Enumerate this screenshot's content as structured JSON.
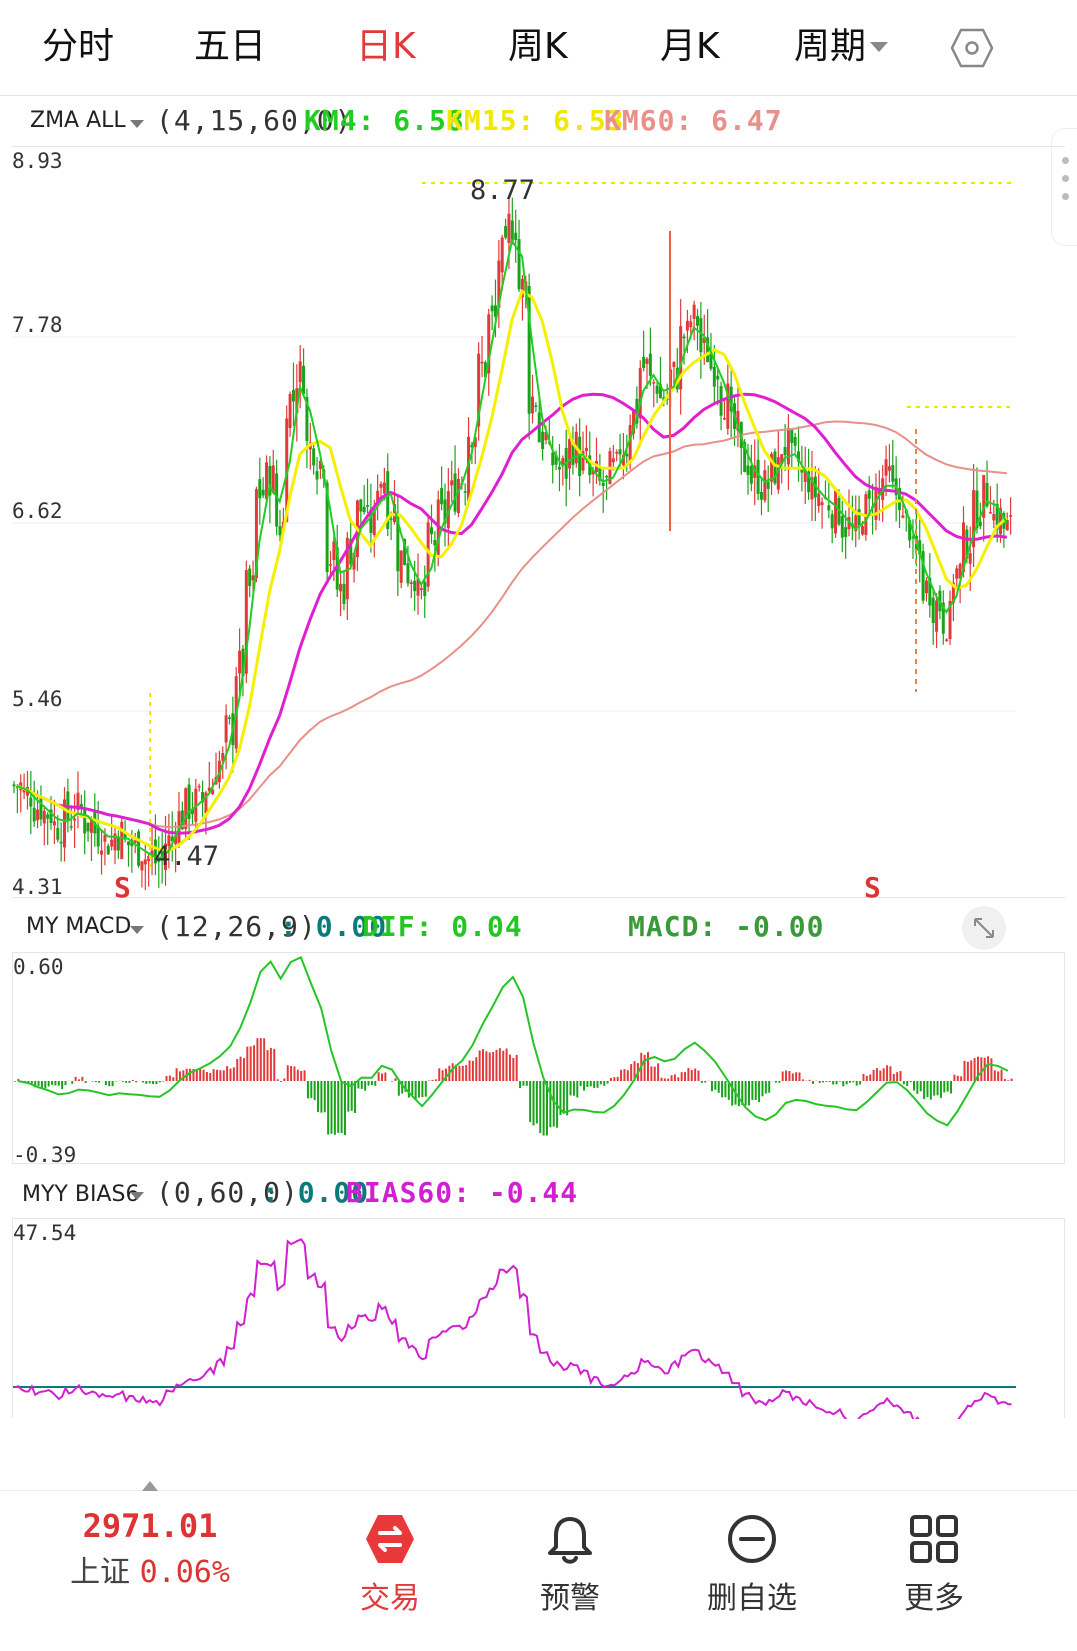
{
  "tabs": [
    {
      "label": "分时"
    },
    {
      "label": "五日"
    },
    {
      "label": "日K"
    },
    {
      "label": "周K"
    },
    {
      "label": "月K"
    },
    {
      "label": "周期"
    }
  ],
  "main_chart": {
    "indicator_name": "ZMA ALL",
    "params": "(4,15,60,0)",
    "km4": "KM4: 6.58",
    "km15": "KM15: 6.53",
    "km60": "KM60: 6.47",
    "y_labels": [
      "8.93",
      "7.78",
      "6.62",
      "5.46",
      "4.31"
    ],
    "high_label": "8.77",
    "low_label": "4.47",
    "signal_left": "S",
    "signal_right": "S"
  },
  "macd": {
    "indicator_name": "MY MACD",
    "params": "(12,26,9)",
    "value": ": 0.00",
    "dif": "DIF: 0.04",
    "macd": "MACD: -0.00",
    "y_top": "0.60",
    "y_bottom": "-0.39"
  },
  "bias": {
    "indicator_name": "MYY BIAS6",
    "params": "(0,60,0)",
    "value": ": 0.00",
    "bias60": "BIAS60: -0.44",
    "y_top": "47.54"
  },
  "bottom_nav": {
    "index_value": "2971.01",
    "index_name": "上证",
    "index_change": "0.06%",
    "trade": "交易",
    "alert": "预警",
    "remove": "删自选",
    "more": "更多"
  },
  "colors": {
    "up": "#e23a3a",
    "down": "#1aa31a",
    "km4": "#22cc22",
    "km15": "#f5f000",
    "km60": "#e8908a",
    "pink_ma": "#e020d0",
    "dif": "#26c526",
    "bias": "#d020d0"
  },
  "chart_data": {
    "type": "candlestick",
    "ylim": [
      4.31,
      8.93
    ],
    "high": 8.77,
    "low": 4.47,
    "close_series": [
      4.95,
      4.9,
      4.82,
      4.78,
      4.7,
      4.75,
      4.8,
      4.72,
      4.66,
      4.6,
      4.65,
      4.58,
      4.55,
      4.5,
      4.47,
      4.6,
      4.75,
      4.82,
      4.85,
      4.95,
      5.1,
      5.3,
      5.7,
      6.2,
      6.8,
      6.9,
      6.6,
      7.4,
      7.55,
      7.1,
      7.0,
      6.4,
      6.2,
      6.45,
      6.7,
      6.6,
      6.9,
      6.7,
      6.4,
      6.3,
      6.15,
      6.5,
      6.65,
      6.8,
      6.9,
      7.2,
      7.6,
      7.9,
      8.3,
      8.5,
      8.1,
      7.4,
      7.15,
      7.0,
      6.95,
      7.1,
      7.0,
      6.9,
      6.85,
      6.95,
      7.1,
      7.3,
      7.6,
      7.5,
      7.4,
      7.55,
      7.8,
      7.9,
      7.7,
      7.6,
      7.4,
      7.2,
      7.0,
      6.9,
      6.85,
      6.95,
      7.1,
      7.0,
      6.9,
      6.8,
      6.75,
      6.7,
      6.6,
      6.55,
      6.7,
      6.8,
      6.9,
      6.8,
      6.6,
      6.4,
      6.2,
      6.1,
      6.0,
      6.3,
      6.5,
      6.7,
      6.8,
      6.65,
      6.58
    ]
  }
}
